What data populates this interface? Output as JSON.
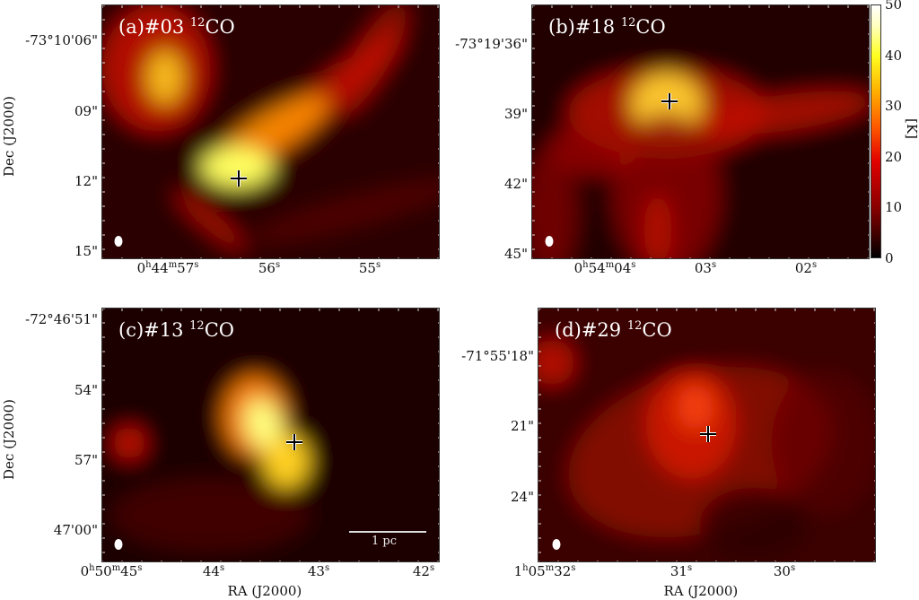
{
  "colormap": "hot",
  "colorbar": {
    "min": 0,
    "max": 50,
    "ticks": [
      "0",
      "10",
      "20",
      "30",
      "40",
      "50"
    ],
    "unit": "[K]"
  },
  "axes": {
    "xlabel": "RA (J2000)",
    "ylabel": "Dec (J2000)"
  },
  "panels": [
    {
      "id": "a",
      "prefix": "(a)#03 ",
      "iso": "12",
      "mol": "CO",
      "yticks": [
        "-73°10'06\"",
        "09\"",
        "12\"",
        "15\""
      ],
      "xticks": [
        {
          "h": "0",
          "hs": "h",
          "m": "44",
          "ms": "m",
          "s": "57",
          "ss": "s"
        },
        {
          "s": "56",
          "ss": "s"
        },
        {
          "s": "55",
          "ss": "s"
        }
      ]
    },
    {
      "id": "b",
      "prefix": "(b)#18 ",
      "iso": "12",
      "mol": "CO",
      "yticks": [
        "-73°19'36\"",
        "39\"",
        "42\"",
        "45\""
      ],
      "xticks": [
        {
          "h": "0",
          "hs": "h",
          "m": "54",
          "ms": "m",
          "s": "04",
          "ss": "s"
        },
        {
          "s": "03",
          "ss": "s"
        },
        {
          "s": "02",
          "ss": "s"
        }
      ]
    },
    {
      "id": "c",
      "prefix": "(c)#13 ",
      "iso": "12",
      "mol": "CO",
      "yticks": [
        "-72°46'51\"",
        "54\"",
        "57\"",
        "47'00\""
      ],
      "xticks": [
        {
          "h": "0",
          "hs": "h",
          "m": "50",
          "ms": "m",
          "s": "45",
          "ss": "s"
        },
        {
          "s": "44",
          "ss": "s"
        },
        {
          "s": "43",
          "ss": "s"
        },
        {
          "s": "42",
          "ss": "s"
        }
      ],
      "scalebar": "1 pc"
    },
    {
      "id": "d",
      "prefix": "(d)#29 ",
      "iso": "12",
      "mol": "CO",
      "yticks": [
        "-71°55'18\"",
        "21\"",
        "24\""
      ],
      "xticks": [
        {
          "h": "1",
          "hs": "h",
          "m": "05",
          "ms": "m",
          "s": "32",
          "ss": "s"
        },
        {
          "s": "31",
          "ss": "s"
        },
        {
          "s": "30",
          "ss": "s"
        }
      ]
    }
  ]
}
